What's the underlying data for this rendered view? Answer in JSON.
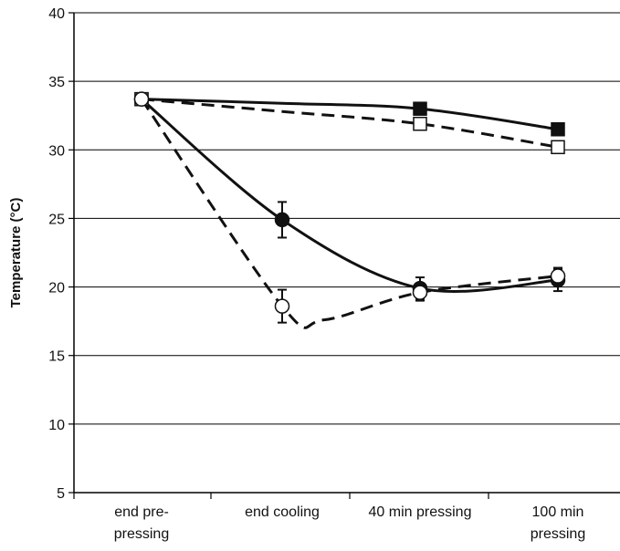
{
  "chart_data": {
    "type": "line",
    "title": "",
    "xlabel": "",
    "ylabel": "Temperature (°C)",
    "ylim": [
      5,
      40
    ],
    "yticks": [
      5,
      10,
      15,
      20,
      25,
      30,
      35,
      40
    ],
    "grid": "horizontal",
    "categories": [
      [
        "end pre-",
        "pressing"
      ],
      [
        "end cooling"
      ],
      [
        "40 min pressing"
      ],
      [
        "100 min",
        "pressing"
      ]
    ],
    "series": [
      {
        "values": [
          33.7,
          null,
          33.0,
          31.5
        ],
        "line": "solid",
        "marker": "square-filled",
        "curve_mid": [
          null,
          33.4,
          null,
          32.3
        ]
      },
      {
        "values": [
          33.7,
          null,
          31.9,
          30.2
        ],
        "line": "dashed",
        "marker": "square-open",
        "curve_mid": [
          null,
          32.8,
          null,
          30.9
        ]
      },
      {
        "values": [
          33.7,
          24.9,
          19.9,
          20.5
        ],
        "line": "solid",
        "marker": "circle-filled",
        "error": [
          null,
          1.3,
          0.8,
          0.8
        ]
      },
      {
        "values": [
          33.7,
          18.6,
          19.6,
          20.8
        ],
        "line": "dashed",
        "marker": "circle-open",
        "error": [
          null,
          1.2,
          0.6,
          0.6
        ],
        "dip": 17.6
      }
    ],
    "colors": {
      "line": "#111111",
      "marker_fill": "#111111",
      "open_fill": "#ffffff",
      "grid": "#000000"
    }
  }
}
